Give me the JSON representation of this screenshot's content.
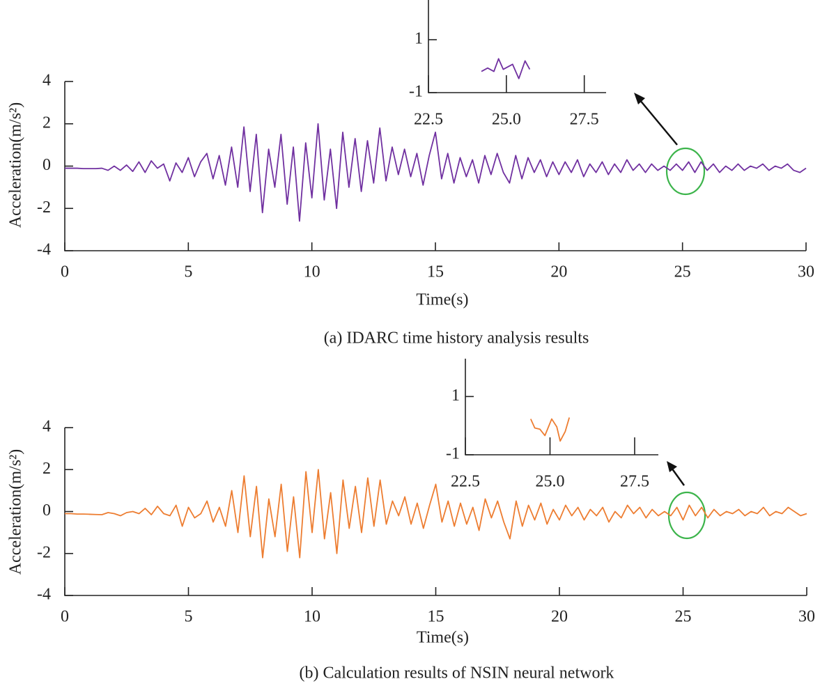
{
  "chart_data": [
    {
      "type": "line",
      "title": "(a) IDARC time history analysis results",
      "xlabel": "Time(s)",
      "ylabel": "Acceleration(m/s²)",
      "x": [
        0,
        0.25,
        0.5,
        0.75,
        1,
        1.25,
        1.5,
        1.75,
        2,
        2.25,
        2.5,
        2.75,
        3,
        3.25,
        3.5,
        3.75,
        4,
        4.25,
        4.5,
        4.75,
        5,
        5.25,
        5.5,
        5.75,
        6,
        6.25,
        6.5,
        6.75,
        7,
        7.25,
        7.5,
        7.75,
        8,
        8.25,
        8.5,
        8.75,
        9,
        9.25,
        9.5,
        9.75,
        10,
        10.25,
        10.5,
        10.75,
        11,
        11.25,
        11.5,
        11.75,
        12,
        12.25,
        12.5,
        12.75,
        13,
        13.25,
        13.5,
        13.75,
        14,
        14.25,
        14.5,
        14.75,
        15,
        15.25,
        15.5,
        15.75,
        16,
        16.25,
        16.5,
        16.75,
        17,
        17.25,
        17.5,
        17.75,
        18,
        18.25,
        18.5,
        18.75,
        19,
        19.25,
        19.5,
        19.75,
        20,
        20.25,
        20.5,
        20.75,
        21,
        21.25,
        21.5,
        21.75,
        22,
        22.25,
        22.5,
        22.75,
        23,
        23.25,
        23.5,
        23.75,
        24,
        24.25,
        24.5,
        24.75,
        25,
        25.25,
        25.5,
        25.75,
        26,
        26.25,
        26.5,
        26.75,
        27,
        27.25,
        27.5,
        27.75,
        28,
        28.25,
        28.5,
        28.75,
        29,
        29.25,
        29.5,
        29.75,
        30
      ],
      "series": [
        {
          "color": "#7030a0",
          "values": [
            -0.1,
            -0.1,
            -0.1,
            -0.12,
            -0.12,
            -0.12,
            -0.1,
            -0.2,
            0,
            -0.2,
            0.05,
            -0.25,
            0.2,
            -0.3,
            0.25,
            -0.1,
            0.1,
            -0.7,
            0.15,
            -0.3,
            0.4,
            -0.5,
            0.2,
            0.6,
            -0.6,
            0.5,
            -0.9,
            0.9,
            -1.0,
            1.85,
            -1.2,
            1.5,
            -2.2,
            0.8,
            -1.0,
            1.5,
            -1.8,
            0.9,
            -2.6,
            1.1,
            -1.5,
            2.0,
            -1.6,
            0.8,
            -2.0,
            1.6,
            -1.0,
            1.3,
            -1.2,
            1.2,
            -0.8,
            1.8,
            -0.7,
            0.9,
            -0.4,
            0.8,
            -0.5,
            0.6,
            -0.9,
            0.5,
            1.6,
            -0.6,
            0.6,
            -0.8,
            0.4,
            -0.5,
            0.3,
            -0.8,
            0.5,
            -0.4,
            0.6,
            -0.3,
            -0.8,
            0.5,
            -0.6,
            0.4,
            -0.3,
            0.3,
            -0.5,
            0.2,
            -0.4,
            0.2,
            -0.3,
            0.3,
            -0.5,
            0.1,
            -0.3,
            0.2,
            -0.4,
            0.1,
            -0.3,
            0.3,
            -0.2,
            0.1,
            -0.3,
            0.1,
            -0.2,
            0.0,
            -0.2,
            0.1,
            -0.2,
            0.2,
            -0.3,
            0.2,
            -0.2,
            0.1,
            -0.3,
            0.0,
            -0.2,
            0.1,
            -0.2,
            0.0,
            -0.1,
            0.1,
            -0.2,
            0.0,
            -0.1,
            0.1,
            -0.2,
            -0.3,
            -0.1
          ]
        }
      ],
      "xlim": [
        0,
        30
      ],
      "ylim": [
        -4,
        4
      ],
      "xticks": [
        0,
        5,
        10,
        15,
        20,
        25,
        30
      ],
      "yticks": [
        -4,
        -2,
        0,
        2,
        4
      ]
    },
    {
      "type": "line",
      "x": [
        24.2,
        24.4,
        24.6,
        24.75,
        24.9,
        25.2,
        25.4,
        25.6,
        25.75
      ],
      "series": [
        {
          "color": "#7030a0",
          "values": [
            -0.2,
            -0.07,
            -0.2,
            0.28,
            -0.12,
            0.07,
            -0.47,
            0.2,
            -0.12
          ]
        }
      ],
      "xlim": [
        22.5,
        28.2
      ],
      "ylim": [
        -1,
        2.5
      ],
      "xticks": [
        22.5,
        {
          "value": 25,
          "label": "25.0"
        },
        27.5
      ],
      "yticks": [
        -1,
        1
      ]
    },
    {
      "type": "line",
      "title": "(b) Calculation results of NSIN neural network",
      "xlabel": "Time(s)",
      "ylabel": "Acceleration(m/s²)",
      "x": [
        0,
        0.25,
        0.5,
        0.75,
        1,
        1.25,
        1.5,
        1.75,
        2,
        2.25,
        2.5,
        2.75,
        3,
        3.25,
        3.5,
        3.75,
        4,
        4.25,
        4.5,
        4.75,
        5,
        5.25,
        5.5,
        5.75,
        6,
        6.25,
        6.5,
        6.75,
        7,
        7.25,
        7.5,
        7.75,
        8,
        8.25,
        8.5,
        8.75,
        9,
        9.25,
        9.5,
        9.75,
        10,
        10.25,
        10.5,
        10.75,
        11,
        11.25,
        11.5,
        11.75,
        12,
        12.25,
        12.5,
        12.75,
        13,
        13.25,
        13.5,
        13.75,
        14,
        14.25,
        14.5,
        14.75,
        15,
        15.25,
        15.5,
        15.75,
        16,
        16.25,
        16.5,
        16.75,
        17,
        17.25,
        17.5,
        17.75,
        18,
        18.25,
        18.5,
        18.75,
        19,
        19.25,
        19.5,
        19.75,
        20,
        20.25,
        20.5,
        20.75,
        21,
        21.25,
        21.5,
        21.75,
        22,
        22.25,
        22.5,
        22.75,
        23,
        23.25,
        23.5,
        23.75,
        24,
        24.25,
        24.5,
        24.75,
        25,
        25.25,
        25.5,
        25.75,
        26,
        26.25,
        26.5,
        26.75,
        27,
        27.25,
        27.5,
        27.75,
        28,
        28.25,
        28.5,
        28.75,
        29,
        29.25,
        29.5,
        29.75,
        30
      ],
      "series": [
        {
          "color": "#ed7d31",
          "values": [
            -0.1,
            -0.1,
            -0.12,
            -0.12,
            -0.13,
            -0.14,
            -0.15,
            -0.05,
            -0.1,
            -0.2,
            -0.05,
            0,
            -0.1,
            0.15,
            -0.15,
            0.25,
            -0.1,
            -0.2,
            0.3,
            -0.7,
            0.2,
            -0.3,
            -0.1,
            0.5,
            -0.5,
            0.2,
            -0.7,
            1.0,
            -1.0,
            1.7,
            -1.2,
            1.2,
            -2.2,
            0.6,
            -1.2,
            1.3,
            -1.9,
            0.7,
            -2.2,
            1.9,
            -1.0,
            2.0,
            -1.3,
            0.9,
            -2.0,
            1.5,
            -0.8,
            1.2,
            -1.0,
            1.6,
            -0.7,
            1.5,
            -0.6,
            0.5,
            -0.2,
            0.7,
            -0.6,
            0.4,
            -0.8,
            0.3,
            1.3,
            -0.5,
            0.5,
            -0.7,
            0.4,
            -0.6,
            0.2,
            -0.9,
            0.6,
            -0.3,
            0.5,
            -0.5,
            -1.3,
            0.5,
            -0.7,
            0.3,
            -0.4,
            0.4,
            -0.6,
            0.1,
            -0.4,
            0.3,
            -0.2,
            0.2,
            -0.4,
            0.1,
            -0.2,
            0.2,
            -0.5,
            0.0,
            -0.3,
            0.3,
            -0.1,
            0.2,
            -0.3,
            0.1,
            -0.2,
            0.0,
            -0.2,
            0.2,
            -0.4,
            0.3,
            -0.2,
            0.2,
            -0.3,
            0.1,
            -0.2,
            0.0,
            -0.1,
            0.1,
            -0.2,
            0.0,
            -0.1,
            0.2,
            -0.2,
            0.0,
            -0.1,
            0.2,
            0.0,
            -0.2,
            -0.1
          ]
        }
      ],
      "xlim": [
        0,
        30
      ],
      "ylim": [
        -4,
        4
      ],
      "xticks": [
        0,
        5,
        10,
        15,
        20,
        25,
        30
      ],
      "yticks": [
        -4,
        -2,
        0,
        2,
        4
      ]
    },
    {
      "type": "line",
      "x": [
        24.43,
        24.55,
        24.7,
        24.85,
        25.05,
        25.2,
        25.3,
        25.45,
        25.57
      ],
      "series": [
        {
          "color": "#ed7d31",
          "values": [
            0.23,
            -0.08,
            -0.12,
            -0.34,
            0.23,
            -0.04,
            -0.53,
            -0.2,
            0.28
          ]
        }
      ],
      "xlim": [
        22.5,
        28.2
      ],
      "ylim": [
        -1,
        2.3
      ],
      "xticks": [
        22.5,
        {
          "value": 25,
          "label": "25.0"
        },
        27.5
      ],
      "yticks": [
        -1,
        1
      ]
    }
  ]
}
